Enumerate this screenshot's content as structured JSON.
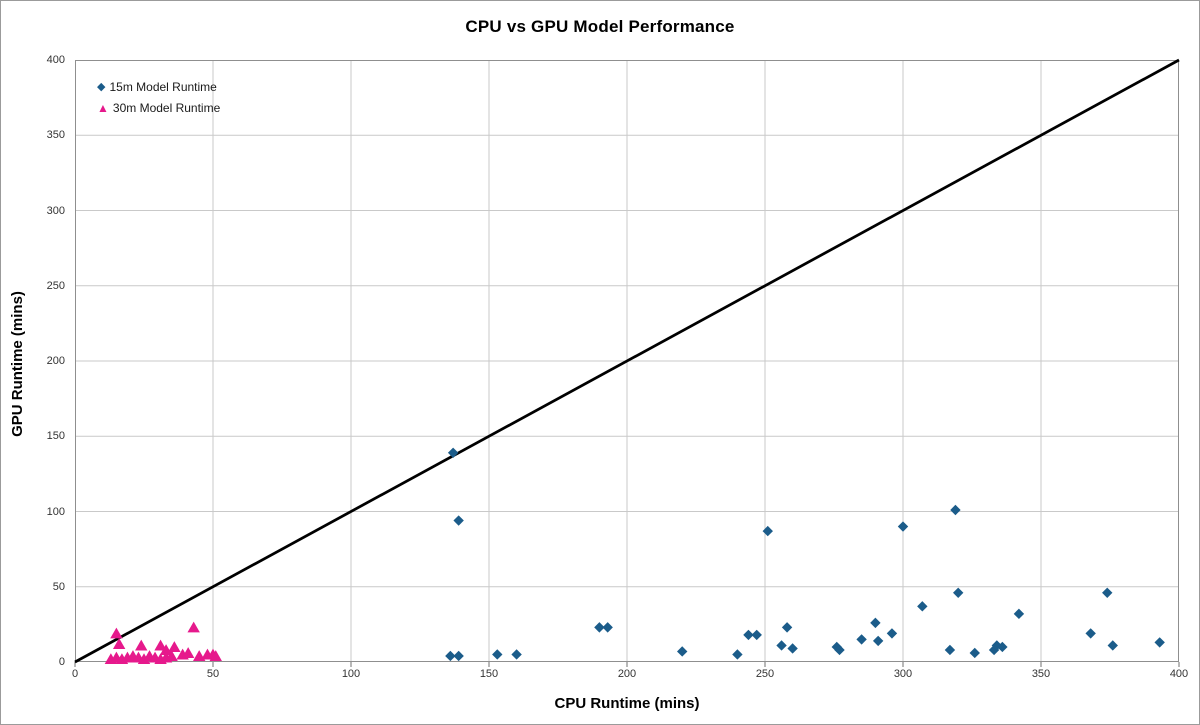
{
  "chart_data": {
    "type": "scatter",
    "title": "CPU vs GPU Model Performance",
    "xlabel": "CPU Runtime (mins)",
    "ylabel": "GPU Runtime (mins)",
    "xlim": [
      0,
      400
    ],
    "ylim": [
      0,
      400
    ],
    "tick_step": 50,
    "grid": true,
    "legend_position": "top-left-inside",
    "grid_color": "#c9c9c9",
    "border_color": "#8f8f8f",
    "tick_color": "#707070",
    "reference_line": {
      "from": [
        0,
        0
      ],
      "to": [
        400,
        400
      ],
      "color": "#000000",
      "width": 2.75
    },
    "series": [
      {
        "name": "15m Model Runtime",
        "marker": "diamond",
        "color": "#1b5c8a",
        "points": [
          [
            136,
            4
          ],
          [
            139,
            4
          ],
          [
            137,
            139
          ],
          [
            139,
            94
          ],
          [
            153,
            5
          ],
          [
            160,
            5
          ],
          [
            190,
            23
          ],
          [
            193,
            23
          ],
          [
            220,
            7
          ],
          [
            240,
            5
          ],
          [
            244,
            18
          ],
          [
            247,
            18
          ],
          [
            251,
            87
          ],
          [
            256,
            11
          ],
          [
            258,
            23
          ],
          [
            260,
            9
          ],
          [
            276,
            10
          ],
          [
            277,
            8
          ],
          [
            285,
            15
          ],
          [
            290,
            26
          ],
          [
            291,
            14
          ],
          [
            296,
            19
          ],
          [
            300,
            90
          ],
          [
            307,
            37
          ],
          [
            317,
            8
          ],
          [
            319,
            101
          ],
          [
            320,
            46
          ],
          [
            326,
            6
          ],
          [
            333,
            8
          ],
          [
            334,
            11
          ],
          [
            336,
            10
          ],
          [
            342,
            32
          ],
          [
            368,
            19
          ],
          [
            374,
            46
          ],
          [
            376,
            11
          ],
          [
            393,
            13
          ]
        ]
      },
      {
        "name": "30m Model Runtime",
        "marker": "triangle",
        "color": "#e6198c",
        "points": [
          [
            15,
            19
          ],
          [
            16,
            12
          ],
          [
            24,
            11
          ],
          [
            31,
            11
          ],
          [
            43,
            23
          ],
          [
            33,
            8
          ],
          [
            36,
            10
          ],
          [
            39,
            5
          ],
          [
            41,
            6
          ],
          [
            45,
            4
          ],
          [
            48,
            5
          ],
          [
            50,
            5
          ],
          [
            51,
            4
          ],
          [
            13,
            2
          ],
          [
            15,
            3
          ],
          [
            17,
            2
          ],
          [
            19,
            3
          ],
          [
            21,
            4
          ],
          [
            23,
            3
          ],
          [
            25,
            2
          ],
          [
            27,
            4
          ],
          [
            29,
            3
          ],
          [
            31,
            2
          ],
          [
            33,
            3
          ],
          [
            35,
            4
          ]
        ]
      }
    ]
  }
}
